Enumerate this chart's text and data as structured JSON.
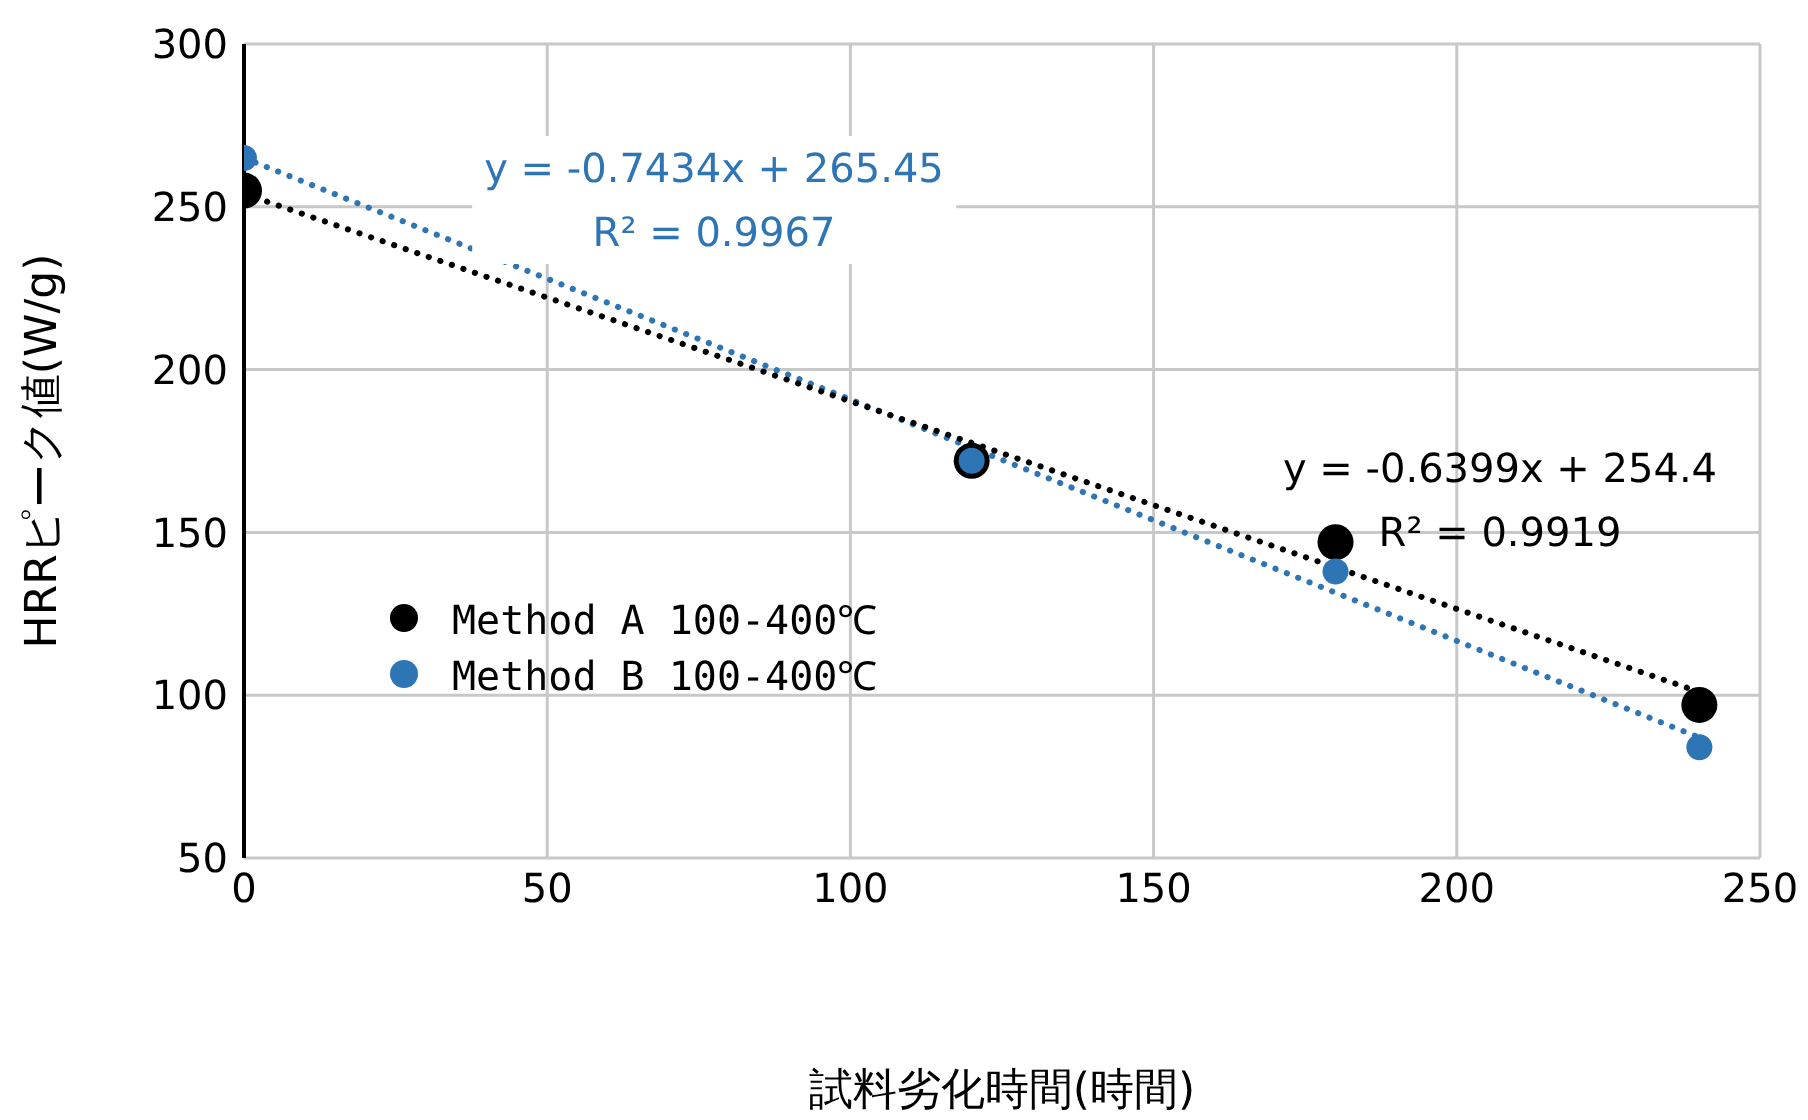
{
  "chart_data": {
    "type": "scatter",
    "xlabel": "試料劣化時間(時間)",
    "ylabel": "HRRピーク値(W/g)",
    "xlim": [
      0,
      250
    ],
    "xticks": [
      0,
      50,
      100,
      150,
      200,
      250
    ],
    "ylim": [
      50,
      300
    ],
    "yticks": [
      50,
      100,
      150,
      200,
      250,
      300
    ],
    "grid": true,
    "legend": "left",
    "marker": "circle",
    "series": [
      {
        "name": "Method A 100-400℃",
        "color": "#000000",
        "x": [
          0,
          120,
          180,
          240
        ],
        "values": [
          255,
          172,
          147,
          97
        ]
      },
      {
        "name": "Method B 100-400℃",
        "color": "#2e75b6",
        "x": [
          0,
          120,
          180,
          240
        ],
        "values": [
          265,
          172,
          138,
          84
        ]
      },
      {
        "type": "line",
        "color": "#2e75b6",
        "x": [
          0,
          240
        ],
        "values": [
          265,
          87
        ],
        "line_style": "dotted",
        "marker": "none"
      },
      {
        "type": "line",
        "color": "#000000",
        "x": [
          0,
          240
        ],
        "values": [
          254,
          101
        ],
        "line_style": "dotted",
        "marker": "none"
      }
    ],
    "annotations": [
      "y = -0.7434x + 265.45\nR² = 0.9967",
      "y = -0.6399x + 254.4\nR² = 0.9919"
    ]
  }
}
